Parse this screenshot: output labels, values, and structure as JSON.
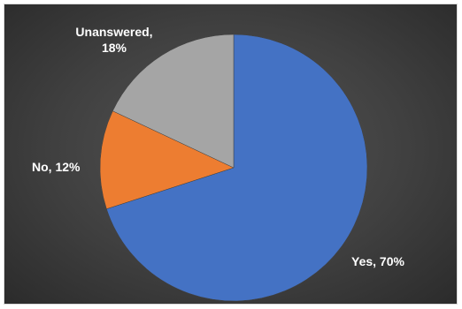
{
  "chart_data": {
    "type": "pie",
    "categories": [
      "Yes",
      "No",
      "Unanswered"
    ],
    "values": [
      70,
      12,
      18
    ],
    "title": "",
    "legend": "none",
    "slices": [
      {
        "label": "Yes",
        "value": 70,
        "text": "Yes, 70%",
        "color": "#4472c4"
      },
      {
        "label": "No",
        "value": 12,
        "text": "No, 12%",
        "color": "#ed7d31"
      },
      {
        "label": "Unanswered",
        "value": 18,
        "text_line1": "Unanswered,",
        "text_line2": "18%",
        "color": "#a5a5a5"
      }
    ]
  }
}
